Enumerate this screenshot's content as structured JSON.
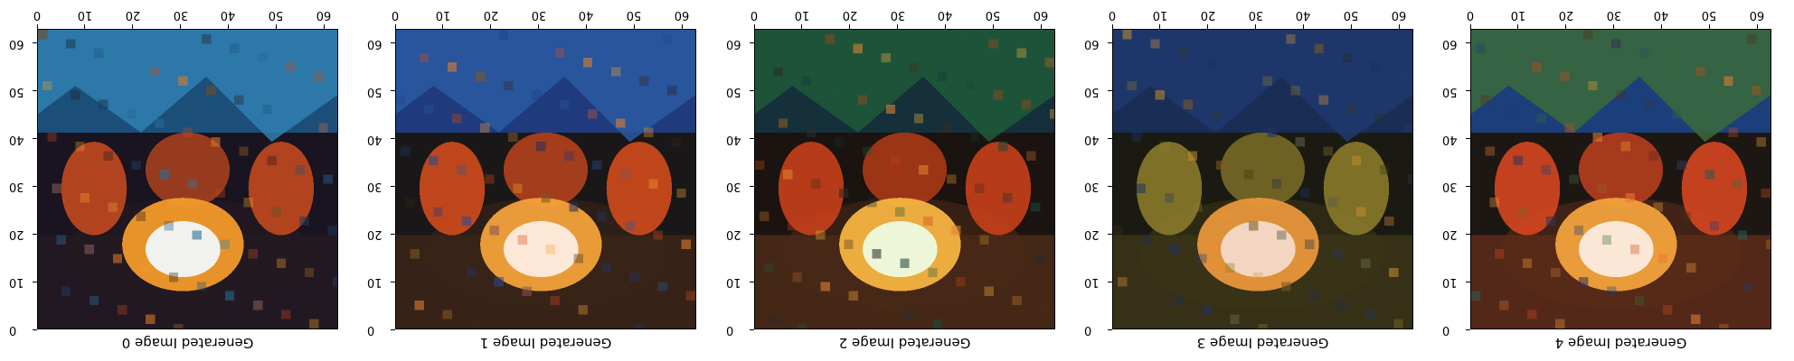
{
  "figure": {
    "tick_values": [
      0,
      10,
      20,
      30,
      40,
      50,
      60
    ],
    "axis_range": [
      0,
      63
    ],
    "panels": [
      {
        "caption": "Generated Image 0",
        "palette": {
          "bg": "#1a1320",
          "sky": "#1b4f7a",
          "accent": "#2f7fb0",
          "fire": "#f1f1ee",
          "glow": "#f39a2a",
          "figure": "#c2491f",
          "ground": "#241a22"
        }
      },
      {
        "caption": "Generated Image 1",
        "palette": {
          "bg": "#1a1718",
          "sky": "#1f3a7d",
          "accent": "#2a5aa0",
          "fire": "#fde8d8",
          "glow": "#f2a23a",
          "figure": "#d24b1c",
          "ground": "#3a2417"
        }
      },
      {
        "caption": "Generated Image 2",
        "palette": {
          "bg": "#1b130f",
          "sky": "#15303a",
          "accent": "#1f5a3a",
          "fire": "#eef6d8",
          "glow": "#f5b340",
          "figure": "#c8401a",
          "ground": "#4a2a17"
        }
      },
      {
        "caption": "Generated Image 3",
        "palette": {
          "bg": "#1a1a12",
          "sky": "#1a2d55",
          "accent": "#203a70",
          "fire": "#f2d6c2",
          "glow": "#e8963a",
          "figure": "#8a7a2a",
          "ground": "#3a3318"
        }
      },
      {
        "caption": "Generated Image 4",
        "palette": {
          "bg": "#1d1714",
          "sky": "#1a3f7a",
          "accent": "#3c6a3a",
          "fire": "#fbe7d6",
          "glow": "#f2a13c",
          "figure": "#d64620",
          "ground": "#5a2a18"
        }
      }
    ]
  }
}
